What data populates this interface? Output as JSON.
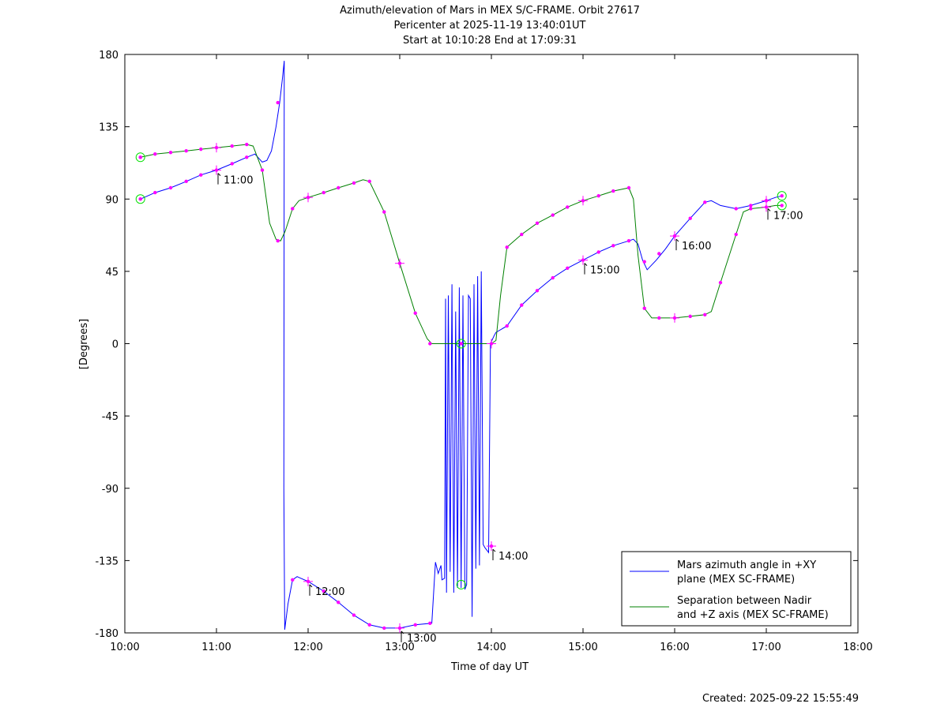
{
  "chart_data": {
    "type": "line",
    "title_lines": [
      "Azimuth/elevation of Mars in MEX S/C-FRAME.  Orbit 27617",
      "Pericenter at 2025-11-19 13:40:01UT",
      "Start at 10:10:28 End at 17:09:31"
    ],
    "xlabel": "Time of day UT",
    "ylabel": "[Degrees]",
    "xlim": [
      10,
      18
    ],
    "ylim": [
      -180,
      180
    ],
    "x_ticks": [
      {
        "v": 10,
        "label": "10:00"
      },
      {
        "v": 11,
        "label": "11:00"
      },
      {
        "v": 12,
        "label": "12:00"
      },
      {
        "v": 13,
        "label": "13:00"
      },
      {
        "v": 14,
        "label": "14:00"
      },
      {
        "v": 15,
        "label": "15:00"
      },
      {
        "v": 16,
        "label": "16:00"
      },
      {
        "v": 17,
        "label": "17:00"
      },
      {
        "v": 18,
        "label": "18:00"
      }
    ],
    "y_ticks": [
      {
        "v": 180,
        "label": "180"
      },
      {
        "v": 135,
        "label": "135"
      },
      {
        "v": 90,
        "label": "90"
      },
      {
        "v": 45,
        "label": "45"
      },
      {
        "v": 0,
        "label": "0"
      },
      {
        "v": -45,
        "label": "-45"
      },
      {
        "v": -90,
        "label": "-90"
      },
      {
        "v": -135,
        "label": "-135"
      },
      {
        "v": -180,
        "label": "-180"
      }
    ],
    "grid": false,
    "legend_position": "bottom-right",
    "series": [
      {
        "name": "Mars azimuth angle in +XY plane (MEX SC-FRAME)",
        "legend_lines": [
          "Mars azimuth angle in +XY",
          "plane (MEX SC-FRAME)"
        ],
        "color": "#0000ff",
        "points": [
          [
            10.17,
            90
          ],
          [
            10.33,
            94
          ],
          [
            10.5,
            97
          ],
          [
            10.67,
            101
          ],
          [
            10.83,
            105
          ],
          [
            11.0,
            108
          ],
          [
            11.17,
            112
          ],
          [
            11.33,
            116
          ],
          [
            11.42,
            118
          ],
          [
            11.5,
            113
          ],
          [
            11.55,
            114
          ],
          [
            11.6,
            120
          ],
          [
            11.65,
            135
          ],
          [
            11.69,
            150
          ],
          [
            11.72,
            165
          ],
          [
            11.74,
            176
          ],
          [
            11.735,
            -90
          ],
          [
            11.745,
            -178
          ],
          [
            11.78,
            -162
          ],
          [
            11.83,
            -147
          ],
          [
            11.88,
            -145
          ],
          [
            11.92,
            -146
          ],
          [
            12.0,
            -148
          ],
          [
            12.17,
            -154
          ],
          [
            12.33,
            -161
          ],
          [
            12.5,
            -169
          ],
          [
            12.67,
            -175
          ],
          [
            12.83,
            -177
          ],
          [
            13.0,
            -177
          ],
          [
            13.17,
            -175
          ],
          [
            13.35,
            -174
          ],
          [
            13.37,
            -155
          ],
          [
            13.39,
            -136
          ],
          [
            13.42,
            -143
          ],
          [
            13.45,
            -138
          ],
          [
            13.46,
            -147
          ],
          [
            13.49,
            -146
          ],
          [
            13.5,
            28
          ],
          [
            13.51,
            -155
          ],
          [
            13.53,
            30
          ],
          [
            13.55,
            -142
          ],
          [
            13.57,
            37
          ],
          [
            13.59,
            -155
          ],
          [
            13.61,
            20
          ],
          [
            13.63,
            -152
          ],
          [
            13.65,
            35
          ],
          [
            13.67,
            -152
          ],
          [
            13.69,
            30
          ],
          [
            13.71,
            -153
          ],
          [
            13.73,
            -150
          ],
          [
            13.75,
            30
          ],
          [
            13.77,
            28
          ],
          [
            13.79,
            -170
          ],
          [
            13.81,
            37
          ],
          [
            13.83,
            -140
          ],
          [
            13.85,
            42
          ],
          [
            13.87,
            -138
          ],
          [
            13.89,
            45
          ],
          [
            13.91,
            -125
          ],
          [
            13.93,
            -127
          ],
          [
            13.97,
            -130
          ],
          [
            13.99,
            0
          ],
          [
            14.03,
            5
          ],
          [
            14.05,
            7
          ],
          [
            14.17,
            11
          ],
          [
            14.33,
            24
          ],
          [
            14.5,
            33
          ],
          [
            14.67,
            41
          ],
          [
            14.83,
            47
          ],
          [
            15.0,
            52
          ],
          [
            15.17,
            57
          ],
          [
            15.33,
            61
          ],
          [
            15.5,
            64
          ],
          [
            15.55,
            65
          ],
          [
            15.6,
            62
          ],
          [
            15.65,
            52
          ],
          [
            15.7,
            46
          ],
          [
            15.8,
            52
          ],
          [
            15.9,
            59
          ],
          [
            16.0,
            67
          ],
          [
            16.17,
            78
          ],
          [
            16.33,
            88
          ],
          [
            16.4,
            89
          ],
          [
            16.5,
            86
          ],
          [
            16.67,
            84
          ],
          [
            16.83,
            86
          ],
          [
            17.0,
            89
          ],
          [
            17.1,
            91
          ],
          [
            17.17,
            92
          ]
        ],
        "markers": [
          [
            10.17,
            90
          ],
          [
            10.33,
            94
          ],
          [
            10.5,
            97
          ],
          [
            10.67,
            101
          ],
          [
            10.83,
            105
          ],
          [
            11.17,
            112
          ],
          [
            11.33,
            116
          ],
          [
            11.67,
            150
          ],
          [
            11.83,
            -147
          ],
          [
            12.17,
            -154
          ],
          [
            12.33,
            -161
          ],
          [
            12.5,
            -169
          ],
          [
            12.67,
            -175
          ],
          [
            12.83,
            -177
          ],
          [
            13.17,
            -175
          ],
          [
            13.33,
            -174
          ],
          [
            14.17,
            11
          ],
          [
            14.33,
            24
          ],
          [
            14.5,
            33
          ],
          [
            14.67,
            41
          ],
          [
            14.83,
            47
          ],
          [
            15.17,
            57
          ],
          [
            15.33,
            61
          ],
          [
            15.5,
            64
          ],
          [
            15.67,
            51
          ],
          [
            15.83,
            56
          ],
          [
            16.17,
            78
          ],
          [
            16.33,
            88
          ],
          [
            16.67,
            84
          ],
          [
            16.83,
            86
          ],
          [
            17.0,
            89
          ]
        ],
        "crosses": [
          [
            11.0,
            108
          ],
          [
            12.0,
            -148
          ],
          [
            13.0,
            -177
          ],
          [
            14.0,
            -126
          ],
          [
            15.0,
            52
          ],
          [
            16.0,
            67
          ],
          [
            17.0,
            89
          ]
        ],
        "circles": [
          [
            10.17,
            90
          ],
          [
            17.17,
            92
          ]
        ]
      },
      {
        "name": "Separation between Nadir and +Z axis (MEX SC-FRAME)",
        "legend_lines": [
          "Separation between Nadir",
          "and +Z axis (MEX SC-FRAME)"
        ],
        "color": "#008000",
        "points": [
          [
            10.17,
            116
          ],
          [
            10.33,
            118
          ],
          [
            10.5,
            119
          ],
          [
            10.67,
            120
          ],
          [
            10.83,
            121
          ],
          [
            11.0,
            122
          ],
          [
            11.17,
            123
          ],
          [
            11.33,
            124
          ],
          [
            11.4,
            123
          ],
          [
            11.5,
            108
          ],
          [
            11.58,
            75
          ],
          [
            11.65,
            65
          ],
          [
            11.7,
            64
          ],
          [
            11.75,
            70
          ],
          [
            11.83,
            84
          ],
          [
            11.9,
            89
          ],
          [
            12.0,
            91
          ],
          [
            12.17,
            94
          ],
          [
            12.33,
            97
          ],
          [
            12.5,
            100
          ],
          [
            12.6,
            102
          ],
          [
            12.67,
            101
          ],
          [
            12.83,
            82
          ],
          [
            13.0,
            50
          ],
          [
            13.17,
            19
          ],
          [
            13.3,
            3
          ],
          [
            13.35,
            0
          ],
          [
            13.5,
            0
          ],
          [
            13.67,
            0
          ],
          [
            13.83,
            0
          ],
          [
            14.0,
            0
          ],
          [
            14.05,
            2
          ],
          [
            14.1,
            30
          ],
          [
            14.17,
            60
          ],
          [
            14.33,
            68
          ],
          [
            14.5,
            75
          ],
          [
            14.67,
            80
          ],
          [
            14.83,
            85
          ],
          [
            15.0,
            89
          ],
          [
            15.17,
            92
          ],
          [
            15.33,
            95
          ],
          [
            15.5,
            97
          ],
          [
            15.55,
            90
          ],
          [
            15.6,
            55
          ],
          [
            15.67,
            22
          ],
          [
            15.75,
            16
          ],
          [
            16.0,
            16
          ],
          [
            16.17,
            17
          ],
          [
            16.33,
            18
          ],
          [
            16.4,
            20
          ],
          [
            16.5,
            38
          ],
          [
            16.67,
            68
          ],
          [
            16.75,
            82
          ],
          [
            16.83,
            84
          ],
          [
            17.0,
            85
          ],
          [
            17.1,
            86
          ],
          [
            17.17,
            86
          ]
        ],
        "markers": [
          [
            10.17,
            116
          ],
          [
            10.33,
            118
          ],
          [
            10.5,
            119
          ],
          [
            10.67,
            120
          ],
          [
            10.83,
            121
          ],
          [
            11.17,
            123
          ],
          [
            11.33,
            124
          ],
          [
            11.5,
            108
          ],
          [
            11.67,
            64
          ],
          [
            11.83,
            84
          ],
          [
            12.17,
            94
          ],
          [
            12.33,
            97
          ],
          [
            12.5,
            100
          ],
          [
            12.67,
            101
          ],
          [
            12.83,
            82
          ],
          [
            13.17,
            19
          ],
          [
            13.33,
            0
          ],
          [
            14.17,
            60
          ],
          [
            14.33,
            68
          ],
          [
            14.5,
            75
          ],
          [
            14.67,
            80
          ],
          [
            14.83,
            85
          ],
          [
            15.17,
            92
          ],
          [
            15.33,
            95
          ],
          [
            15.5,
            97
          ],
          [
            15.67,
            22
          ],
          [
            15.83,
            16
          ],
          [
            16.17,
            17
          ],
          [
            16.33,
            18
          ],
          [
            16.5,
            38
          ],
          [
            16.67,
            68
          ],
          [
            16.83,
            84
          ]
        ],
        "crosses": [
          [
            11.0,
            122
          ],
          [
            12.0,
            91
          ],
          [
            13.0,
            50
          ],
          [
            14.0,
            0
          ],
          [
            15.0,
            89
          ],
          [
            16.0,
            16
          ],
          [
            17.0,
            85
          ]
        ],
        "circles": [
          [
            10.17,
            116
          ],
          [
            17.17,
            86
          ],
          [
            13.67,
            0
          ]
        ]
      }
    ],
    "time_annotations": [
      {
        "x": 11.0,
        "y": 108,
        "label": "11:00"
      },
      {
        "x": 12.0,
        "y": -148,
        "label": "12:00"
      },
      {
        "x": 13.0,
        "y": -177,
        "label": "13:00"
      },
      {
        "x": 14.0,
        "y": -126,
        "label": "14:00"
      },
      {
        "x": 15.0,
        "y": 52,
        "label": "15:00"
      },
      {
        "x": 16.0,
        "y": 67,
        "label": "16:00"
      },
      {
        "x": 17.0,
        "y": 86,
        "label": "17:00"
      }
    ],
    "extra_green_circle": [
      13.67,
      -150
    ]
  },
  "footer": {
    "created": "Created: 2025-09-22 15:55:49"
  }
}
